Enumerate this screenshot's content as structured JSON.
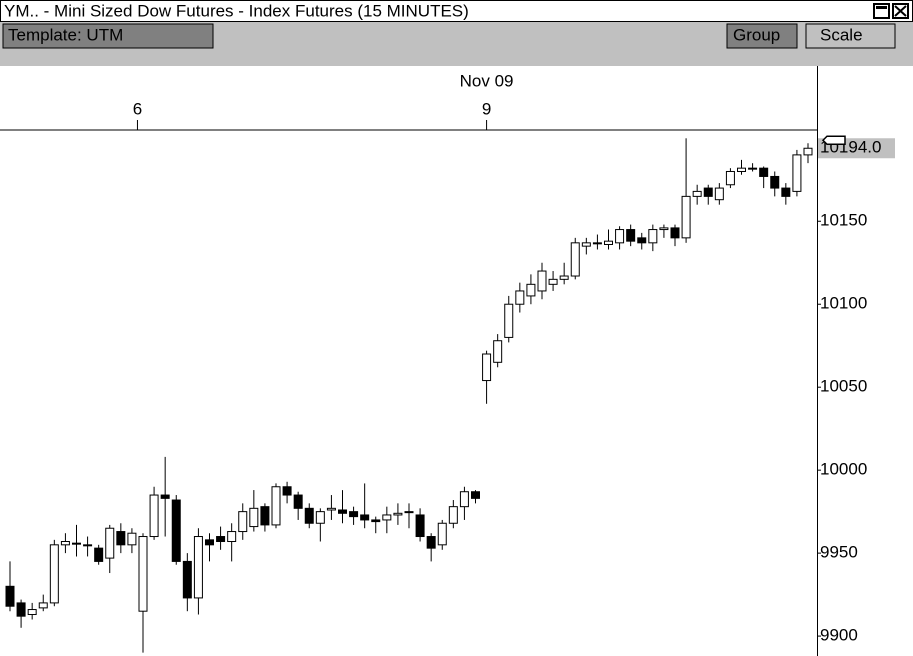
{
  "window_title": "YM.. - Mini Sized Dow Futures - Index Futures (15 MINUTES)",
  "toolbar": {
    "template": "Template: UTM",
    "group": "Group",
    "scale": "Scale"
  },
  "chart_data": {
    "type": "candlestick",
    "date_label": "Nov 09",
    "xticks": [
      {
        "value": 11.5,
        "label": "6"
      },
      {
        "value": 43,
        "label": "9"
      }
    ],
    "ylim": [
      9888,
      10205
    ],
    "yticks": [
      10150,
      10100,
      10050,
      10000,
      9950,
      9900
    ],
    "last_price": {
      "value": 10194,
      "label": "10194.0"
    },
    "up_color": "#ffffff",
    "down_color": "#000000",
    "open": [
      9930,
      9920,
      9913,
      9917,
      9920,
      9955,
      9956,
      9955,
      9953,
      9947,
      9963,
      9955,
      9915,
      9960,
      9985,
      9982,
      9945,
      9923,
      9958,
      9960,
      9957,
      9963,
      9966,
      9978,
      9967,
      9990,
      9985,
      9977,
      9968,
      9976,
      9976,
      9975,
      9973,
      9970,
      9970,
      9973,
      9975,
      9973,
      9960,
      9955,
      9968,
      9978,
      9987,
      10054,
      10065,
      10080,
      10100,
      10105,
      10108,
      10112,
      10115,
      10117,
      10135,
      10137,
      10136,
      10137,
      10145,
      10140,
      10137,
      10145,
      10146,
      10140,
      10165,
      10170,
      10163,
      10172,
      10180,
      10182,
      10182,
      10177,
      10170,
      10168,
      10190
    ],
    "high": [
      9945,
      9922,
      9920,
      9925,
      9958,
      9962,
      9967,
      9960,
      9955,
      9967,
      9968,
      9965,
      9962,
      9990,
      10008,
      9985,
      9950,
      9965,
      9962,
      9966,
      9968,
      9980,
      9988,
      9980,
      9992,
      9993,
      9987,
      9980,
      9977,
      9985,
      9988,
      9978,
      9992,
      9972,
      9978,
      9980,
      9980,
      9977,
      9962,
      9970,
      9982,
      9990,
      9988,
      10072,
      10082,
      10105,
      10113,
      10118,
      10125,
      10120,
      10125,
      10140,
      10140,
      10142,
      10145,
      10147,
      10148,
      10143,
      10148,
      10148,
      10148,
      10200,
      10172,
      10172,
      10173,
      10182,
      10187,
      10185,
      10183,
      10180,
      10173,
      10193,
      10197
    ],
    "low": [
      9915,
      9905,
      9910,
      9915,
      9918,
      9950,
      9948,
      9948,
      9943,
      9938,
      9950,
      9950,
      9890,
      9958,
      9960,
      9943,
      9915,
      9913,
      9945,
      9952,
      9945,
      9958,
      9963,
      9963,
      9965,
      9980,
      9970,
      9965,
      9957,
      9970,
      9968,
      9967,
      9965,
      9962,
      9962,
      9967,
      9965,
      9957,
      9945,
      9952,
      9965,
      9970,
      9980,
      10040,
      10062,
      10077,
      10095,
      10100,
      10103,
      10108,
      10112,
      10115,
      10130,
      10133,
      10133,
      10133,
      10135,
      10133,
      10132,
      10140,
      10135,
      10137,
      10160,
      10160,
      10160,
      10170,
      10178,
      10180,
      10170,
      10165,
      10160,
      10165,
      10185
    ],
    "close": [
      9918,
      9912,
      9916,
      9920,
      9955,
      9957,
      9956,
      9955,
      9945,
      9965,
      9955,
      9962,
      9960,
      9985,
      9983,
      9945,
      9923,
      9960,
      9955,
      9957,
      9963,
      9975,
      9977,
      9967,
      9990,
      9985,
      9977,
      9968,
      9975,
      9977,
      9974,
      9972,
      9970,
      9969,
      9973,
      9974,
      9975,
      9960,
      9953,
      9968,
      9978,
      9987,
      9983,
      10070,
      10078,
      10100,
      10108,
      10112,
      10120,
      10115,
      10117,
      10137,
      10137,
      10137,
      10138,
      10145,
      10138,
      10137,
      10145,
      10146,
      10140,
      10165,
      10168,
      10165,
      10170,
      10180,
      10182,
      10182,
      10177,
      10170,
      10165,
      10190,
      10194
    ]
  }
}
